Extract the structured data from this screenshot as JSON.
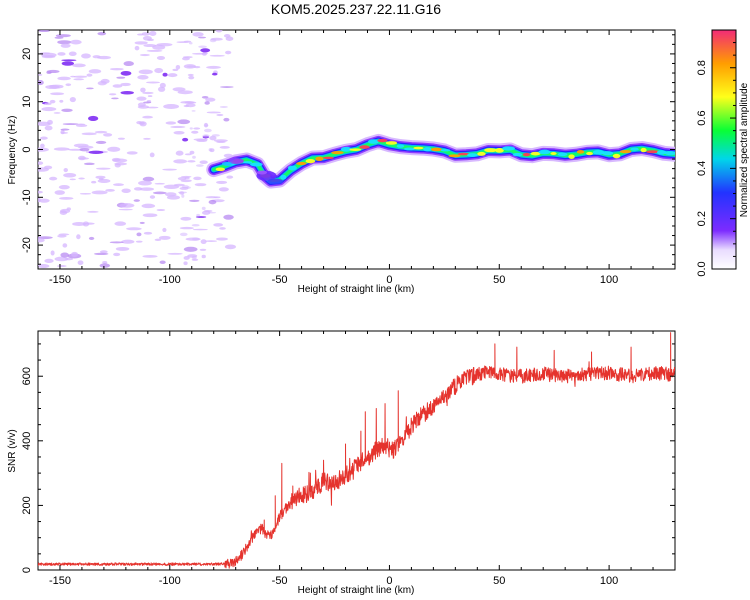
{
  "figure": {
    "title": "KOM5.2025.237.22.11.G16"
  },
  "chart_data": [
    {
      "type": "heatmap",
      "title": "KOM5.2025.237.22.11.G16",
      "xlabel": "Height of straight line (km)",
      "ylabel": "Frequency (Hz)",
      "xlim": [
        -160,
        130
      ],
      "ylim": [
        -25,
        25
      ],
      "x_ticks": [
        -150,
        -100,
        -50,
        0,
        50,
        100
      ],
      "x_tick_labels": [
        "-150",
        "-100",
        "-50",
        "0",
        "50",
        "100"
      ],
      "y_ticks": [
        -20,
        -10,
        0,
        10,
        20
      ],
      "y_tick_labels": [
        "-20",
        "-10",
        "0",
        "10",
        "20"
      ],
      "colorbar": {
        "label": "Normalized spectral amplitude",
        "range": [
          0,
          0.95
        ],
        "ticks": [
          0,
          0.2,
          0.4,
          0.6,
          0.8
        ],
        "tick_labels": [
          "0.0",
          "0.2",
          "0.4",
          "0.6",
          "0.8"
        ]
      },
      "ridge": [
        [
          -80,
          -4.2
        ],
        [
          -75,
          -3.5
        ],
        [
          -70,
          -2.6
        ],
        [
          -65,
          -2.2
        ],
        [
          -60,
          -3.1
        ],
        [
          -57,
          -5.4
        ],
        [
          -54,
          -6.6
        ],
        [
          -50,
          -6.4
        ],
        [
          -45,
          -4.4
        ],
        [
          -40,
          -2.9
        ],
        [
          -35,
          -1.8
        ],
        [
          -30,
          -1.7
        ],
        [
          -25,
          -1.0
        ],
        [
          -20,
          -0.4
        ],
        [
          -15,
          0.0
        ],
        [
          -10,
          1.0
        ],
        [
          -5,
          1.7
        ],
        [
          0,
          1.0
        ],
        [
          5,
          0.6
        ],
        [
          10,
          0.4
        ],
        [
          15,
          0.3
        ],
        [
          20,
          0.1
        ],
        [
          25,
          -0.3
        ],
        [
          30,
          -1.2
        ],
        [
          35,
          -1.1
        ],
        [
          40,
          -0.9
        ],
        [
          45,
          -0.2
        ],
        [
          50,
          -0.3
        ],
        [
          55,
          -0.1
        ],
        [
          60,
          -1.1
        ],
        [
          65,
          -1.3
        ],
        [
          70,
          -0.8
        ],
        [
          75,
          -0.9
        ],
        [
          80,
          -1.2
        ],
        [
          85,
          -1.0
        ],
        [
          90,
          -0.6
        ],
        [
          95,
          -0.5
        ],
        [
          100,
          -1.1
        ],
        [
          105,
          -0.9
        ],
        [
          110,
          0.0
        ],
        [
          115,
          0.2
        ],
        [
          120,
          -0.2
        ],
        [
          125,
          -0.8
        ],
        [
          130,
          -1.0
        ]
      ],
      "noise_region_x": [
        -160,
        -72
      ]
    },
    {
      "type": "line",
      "title": "",
      "xlabel": "Height of straight line (km)",
      "ylabel": "SNR (v/v)",
      "xlim": [
        -160,
        130
      ],
      "ylim": [
        0,
        740
      ],
      "x_ticks": [
        -150,
        -100,
        -50,
        0,
        50,
        100
      ],
      "x_tick_labels": [
        "-150",
        "-100",
        "-50",
        "0",
        "50",
        "100"
      ],
      "y_ticks": [
        0,
        200,
        400,
        600
      ],
      "y_tick_labels": [
        "0",
        "200",
        "400",
        "600"
      ],
      "series": [
        {
          "name": "SNR",
          "color": "#e5332d",
          "envelope": [
            [
              -160,
              18
            ],
            [
              -140,
              18
            ],
            [
              -120,
              18
            ],
            [
              -100,
              18
            ],
            [
              -80,
              18
            ],
            [
              -72,
              20
            ],
            [
              -68,
              40
            ],
            [
              -65,
              70
            ],
            [
              -62,
              105
            ],
            [
              -60,
              120
            ],
            [
              -58,
              130
            ],
            [
              -56,
              105
            ],
            [
              -53,
              115
            ],
            [
              -50,
              165
            ],
            [
              -46,
              200
            ],
            [
              -42,
              230
            ],
            [
              -38,
              235
            ],
            [
              -34,
              250
            ],
            [
              -30,
              275
            ],
            [
              -26,
              265
            ],
            [
              -22,
              285
            ],
            [
              -18,
              300
            ],
            [
              -14,
              325
            ],
            [
              -10,
              350
            ],
            [
              -6,
              370
            ],
            [
              -2,
              385
            ],
            [
              2,
              370
            ],
            [
              6,
              405
            ],
            [
              10,
              445
            ],
            [
              14,
              475
            ],
            [
              18,
              495
            ],
            [
              22,
              520
            ],
            [
              26,
              545
            ],
            [
              30,
              570
            ],
            [
              34,
              590
            ],
            [
              38,
              600
            ],
            [
              42,
              610
            ],
            [
              46,
              612
            ],
            [
              50,
              606
            ],
            [
              60,
              600
            ],
            [
              70,
              608
            ],
            [
              80,
              598
            ],
            [
              90,
              605
            ],
            [
              100,
              610
            ],
            [
              110,
              600
            ],
            [
              120,
              610
            ],
            [
              130,
              605
            ]
          ],
          "spikes": [
            [
              -57,
              155
            ],
            [
              -52,
              230
            ],
            [
              -49,
              330
            ],
            [
              -47,
              205
            ],
            [
              -44,
              260
            ],
            [
              -36,
              300
            ],
            [
              -30,
              340
            ],
            [
              -20,
              390
            ],
            [
              -13,
              430
            ],
            [
              -11,
              490
            ],
            [
              -6,
              500
            ],
            [
              -2,
              515
            ],
            [
              4,
              555
            ],
            [
              48,
              700
            ],
            [
              58,
              690
            ],
            [
              75,
              680
            ],
            [
              92,
              675
            ],
            [
              110,
              690
            ],
            [
              128,
              735
            ]
          ]
        }
      ]
    }
  ]
}
